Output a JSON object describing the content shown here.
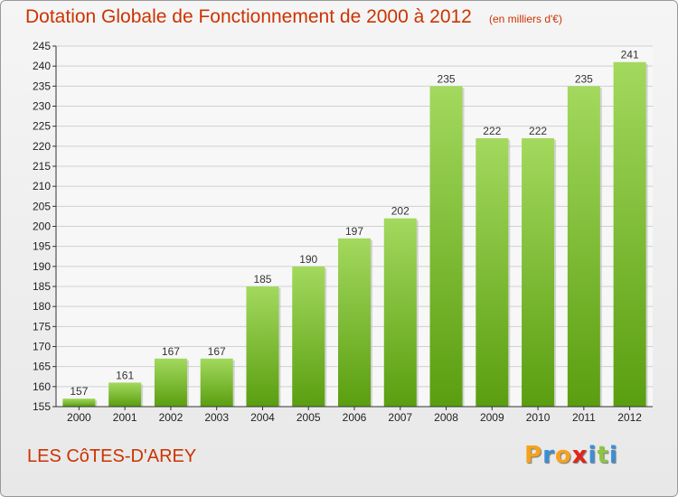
{
  "header": {
    "title": "Dotation Globale de Fonctionnement de 2000 à 2012",
    "unit": "(en milliers d'€)"
  },
  "footer": {
    "commune": "LES CôTES-D'AREY",
    "logo_letters": [
      "P",
      "r",
      "o",
      "x",
      "i",
      "t",
      "i"
    ]
  },
  "colors": {
    "title": "#cc3300",
    "bar_light": "#9ed158",
    "bar_dark": "#5ea512",
    "background": "#eeeeee"
  },
  "chart_data": {
    "type": "bar",
    "categories": [
      "2000",
      "2001",
      "2002",
      "2003",
      "2004",
      "2005",
      "2006",
      "2007",
      "2008",
      "2009",
      "2010",
      "2011",
      "2012"
    ],
    "values": [
      157,
      161,
      167,
      167,
      185,
      190,
      197,
      202,
      235,
      222,
      222,
      235,
      241
    ],
    "title": "Dotation Globale de Fonctionnement de 2000 à 2012",
    "subtitle": "(en milliers d'€)",
    "xlabel": "",
    "ylabel": "",
    "ylim": [
      155,
      245
    ],
    "yticks": [
      155,
      160,
      165,
      170,
      175,
      180,
      185,
      190,
      195,
      200,
      205,
      210,
      215,
      220,
      225,
      230,
      235,
      240,
      245
    ],
    "grid": true,
    "legend": "none"
  }
}
